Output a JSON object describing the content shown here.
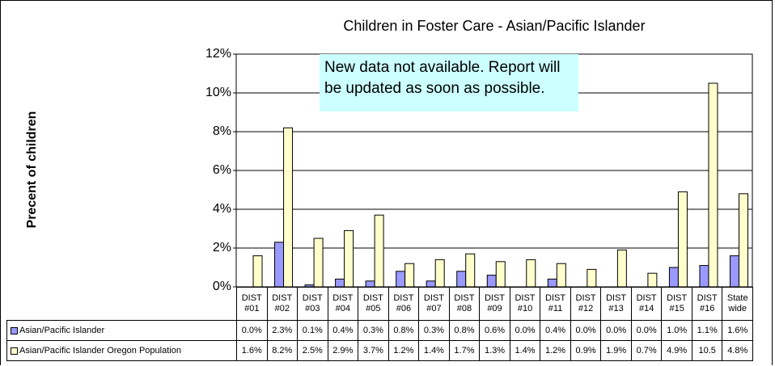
{
  "chart_data": {
    "type": "bar",
    "title": "Children in Foster Care - Asian/Pacific Islander",
    "y_label": "Precent of children",
    "annotation": "New data not available. Report will be updated as soon as possible.",
    "categories": [
      "DIST #01",
      "DIST #02",
      "DIST #03",
      "DIST #04",
      "DIST #05",
      "DIST #06",
      "DIST #07",
      "DIST #08",
      "DIST #09",
      "DIST #10",
      "DIST #11",
      "DIST #12",
      "DIST #13",
      "DIST #14",
      "DIST #15",
      "DIST #16",
      "State wide"
    ],
    "series": [
      {
        "name": "Asian/Pacific Islander",
        "color": "#9999ff",
        "values": [
          0.0,
          2.3,
          0.1,
          0.4,
          0.3,
          0.8,
          0.3,
          0.8,
          0.6,
          0.0,
          0.4,
          0.0,
          0.0,
          0.0,
          1.0,
          1.1,
          1.6
        ],
        "value_labels": [
          "0.0%",
          "2.3%",
          "0.1%",
          "0.4%",
          "0.3%",
          "0.8%",
          "0.3%",
          "0.8%",
          "0.6%",
          "0.0%",
          "0.4%",
          "0.0%",
          "0.0%",
          "0.0%",
          "1.0%",
          "1.1%",
          "1.6%"
        ]
      },
      {
        "name": "Asian/Pacific Islander Oregon Population",
        "color": "#ffffcc",
        "values": [
          1.6,
          8.2,
          2.5,
          2.9,
          3.7,
          1.2,
          1.4,
          1.7,
          1.3,
          1.4,
          1.2,
          0.9,
          1.9,
          0.7,
          4.9,
          10.5,
          4.8
        ],
        "value_labels": [
          "1.6%",
          "8.2%",
          "2.5%",
          "2.9%",
          "3.7%",
          "1.2%",
          "1.4%",
          "1.7%",
          "1.3%",
          "1.4%",
          "1.2%",
          "0.9%",
          "1.9%",
          "0.7%",
          "4.9%",
          "10.5",
          "4.8%"
        ]
      }
    ],
    "ylim": [
      0,
      12
    ],
    "yticks": [
      {
        "value": 0,
        "label": "0%"
      },
      {
        "value": 2,
        "label": "2%"
      },
      {
        "value": 4,
        "label": "4%"
      },
      {
        "value": 6,
        "label": "6%"
      },
      {
        "value": 8,
        "label": "8%"
      },
      {
        "value": 10,
        "label": "10%"
      },
      {
        "value": 12,
        "label": "12%"
      }
    ],
    "grid": true
  }
}
